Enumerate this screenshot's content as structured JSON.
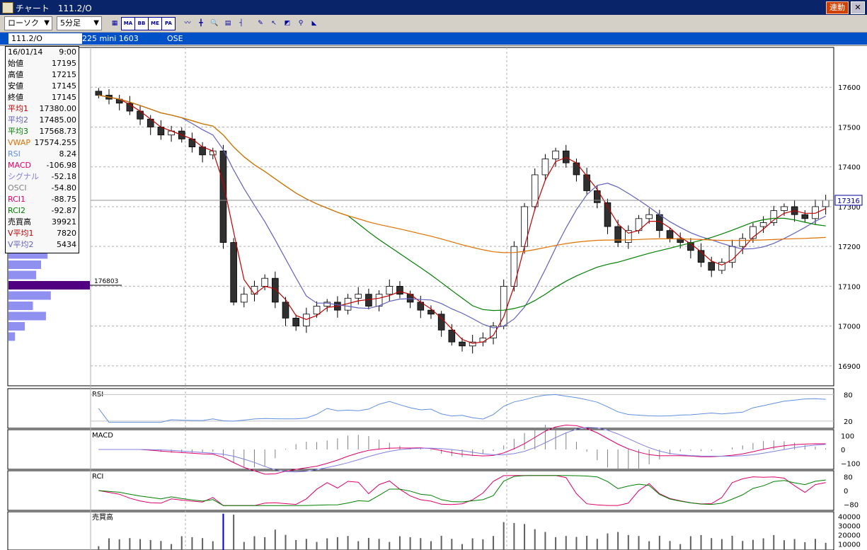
{
  "window": {
    "title": "チャート　111.2/O",
    "link_button": "連動",
    "close_glyph": "✕"
  },
  "toolbar": {
    "chart_type": "ローソク",
    "interval": "5分足",
    "dropdown_arrow": "▼",
    "buttons": [
      {
        "name": "bar-chart-icon",
        "glyph": "▦"
      },
      {
        "name": "ma-button",
        "glyph": "MA"
      },
      {
        "name": "bb-button",
        "glyph": "BB"
      },
      {
        "name": "mae-button",
        "glyph": "ME"
      },
      {
        "name": "pa-button",
        "glyph": "PA"
      },
      {
        "name": "line-icon",
        "glyph": "〰"
      },
      {
        "name": "crosshair-icon",
        "glyph": "╋"
      },
      {
        "name": "zoom-icon",
        "glyph": "🔍"
      },
      {
        "name": "grid-icon",
        "glyph": "▤"
      },
      {
        "name": "bars-icon",
        "glyph": "┤"
      },
      {
        "name": "pencil-icon",
        "glyph": "✎"
      },
      {
        "name": "cursor-icon",
        "glyph": "↖"
      },
      {
        "name": "eraser-icon",
        "glyph": "◩"
      },
      {
        "name": "search-icon",
        "glyph": "⚲"
      },
      {
        "name": "fib-icon",
        "glyph": "◣"
      }
    ]
  },
  "infobar": {
    "code": "111.2/O",
    "name": "225 mini 1603",
    "market": "OSE"
  },
  "info_box": [
    {
      "k": "16/01/14",
      "v": "9:00",
      "c": "#000"
    },
    {
      "k": "始値",
      "v": "17195",
      "c": "#000"
    },
    {
      "k": "高値",
      "v": "17215",
      "c": "#000"
    },
    {
      "k": "安値",
      "v": "17145",
      "c": "#000"
    },
    {
      "k": "終値",
      "v": "17145",
      "c": "#000"
    },
    {
      "k": "平均1",
      "v": "17380.00",
      "c": "#c00000"
    },
    {
      "k": "平均2",
      "v": "17485.00",
      "c": "#6060c0"
    },
    {
      "k": "平均3",
      "v": "17568.73",
      "c": "#008000"
    },
    {
      "k": "VWAP",
      "v": "17574.255",
      "c": "#e07000"
    },
    {
      "k": "RSI",
      "v": "8.24",
      "c": "#6090e0"
    },
    {
      "k": "MACD",
      "v": "-106.98",
      "c": "#e0006a"
    },
    {
      "k": "シグナル",
      "v": "-52.18",
      "c": "#8080e0"
    },
    {
      "k": "OSCI",
      "v": "-54.80",
      "c": "#808080"
    },
    {
      "k": "RCI1",
      "v": "-88.75",
      "c": "#e0006a"
    },
    {
      "k": "RCI2",
      "v": "-92.87",
      "c": "#008000"
    },
    {
      "k": "売買高",
      "v": "39921",
      "c": "#000"
    },
    {
      "k": "V平均1",
      "v": "7820",
      "c": "#c00000"
    },
    {
      "k": "V平均2",
      "v": "5434",
      "c": "#6060c0"
    }
  ],
  "colors": {
    "up_candle": "#ffffff",
    "down_candle": "#303030",
    "ma1": "#c00000",
    "ma2": "#6060c0",
    "ma3": "#008000",
    "vwap": "#e07000",
    "rsi": "#6090e0",
    "macd": "#e0006a",
    "signal": "#8080e0",
    "osci": "#808080",
    "rci1": "#e0006a",
    "rci2": "#008000",
    "volprofile": "#9090f0",
    "volprofile_max": "#500080"
  },
  "price_axis": {
    "ticks": [
      17600,
      17500,
      17400,
      17300,
      17200,
      17100,
      17000,
      16900
    ],
    "last_price": "17316"
  },
  "volume_profile": {
    "max_label": "176803",
    "bars": [
      0.55,
      0.62,
      0.58,
      0.48,
      0.4,
      0.34,
      1.0,
      0.52,
      0.3,
      0.46,
      0.2,
      0.08
    ]
  },
  "panels": {
    "rsi": {
      "label": "RSI",
      "ticks": [
        "80",
        "20"
      ]
    },
    "macd": {
      "label": "MACD",
      "ticks": [
        "100",
        "0",
        "−100"
      ]
    },
    "rci": {
      "label": "RCI",
      "ticks": [
        "80",
        "0",
        "−80"
      ]
    },
    "vol": {
      "label": "売買高",
      "ticks": [
        "40000",
        "30000",
        "20000",
        "10000"
      ]
    }
  },
  "chart_data": {
    "type": "candlestick",
    "title": "225 mini 1603",
    "x_start_date": "16/01/14",
    "ylim": [
      16850,
      17700
    ],
    "closes_approx": [
      17580,
      17570,
      17560,
      17540,
      17520,
      17500,
      17480,
      17490,
      17470,
      17450,
      17430,
      17440,
      17210,
      17060,
      17080,
      17100,
      17120,
      17060,
      17020,
      17000,
      17030,
      17050,
      17060,
      17040,
      17070,
      17080,
      17050,
      17080,
      17100,
      17080,
      17060,
      17040,
      17030,
      16990,
      16960,
      16950,
      16960,
      16970,
      17000,
      17100,
      17200,
      17300,
      17380,
      17420,
      17440,
      17410,
      17380,
      17340,
      17310,
      17250,
      17210,
      17240,
      17270,
      17280,
      17240,
      17220,
      17210,
      17190,
      17160,
      17140,
      17160,
      17200,
      17220,
      17250,
      17260,
      17290,
      17300,
      17280,
      17270,
      17300,
      17316
    ]
  }
}
